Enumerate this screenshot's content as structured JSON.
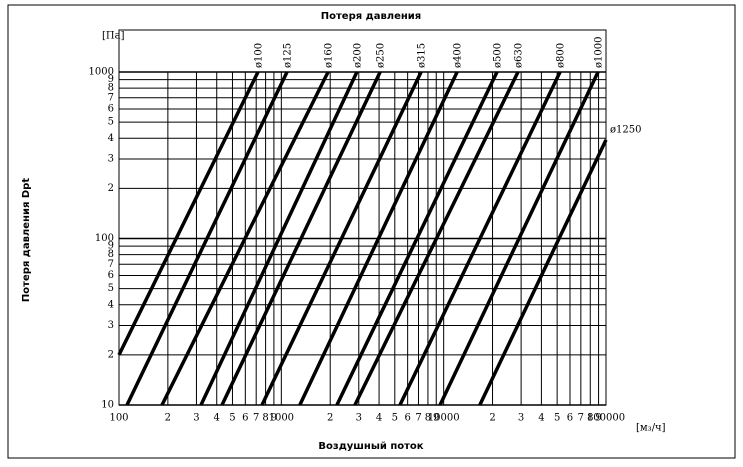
{
  "chart_data": {
    "type": "line",
    "title": "Потеря давления",
    "y_label": "Потеря давления Dpt",
    "x_label": "Воздушный поток",
    "y_unit": "[Па]",
    "x_unit": "[м₃/ч]",
    "xscale": "log",
    "yscale": "log",
    "grid": true,
    "color": "#000000",
    "xlim": [
      100,
      100000
    ],
    "ylim": [
      10,
      1000
    ],
    "xticks": [
      100,
      {
        "value": 200,
        "label": "2"
      },
      {
        "value": 300,
        "label": "3"
      },
      {
        "value": 400,
        "label": "4"
      },
      {
        "value": 500,
        "label": "5"
      },
      {
        "value": 600,
        "label": "6"
      },
      {
        "value": 700,
        "label": "7"
      },
      {
        "value": 800,
        "label": "8"
      },
      {
        "value": 900,
        "label": "9"
      },
      1000,
      {
        "value": 2000,
        "label": "2"
      },
      {
        "value": 3000,
        "label": "3"
      },
      {
        "value": 4000,
        "label": "4"
      },
      {
        "value": 5000,
        "label": "5"
      },
      {
        "value": 6000,
        "label": "6"
      },
      {
        "value": 7000,
        "label": "7"
      },
      {
        "value": 8000,
        "label": "8"
      },
      {
        "value": 9000,
        "label": "9"
      },
      10000,
      {
        "value": 20000,
        "label": "2"
      },
      {
        "value": 30000,
        "label": "3"
      },
      {
        "value": 40000,
        "label": "4"
      },
      {
        "value": 50000,
        "label": "5"
      },
      {
        "value": 60000,
        "label": "6"
      },
      {
        "value": 70000,
        "label": "7"
      },
      {
        "value": 80000,
        "label": "8"
      },
      {
        "value": 90000,
        "label": "9"
      },
      100000
    ],
    "yticks": [
      10,
      {
        "value": 20,
        "label": "2"
      },
      {
        "value": 30,
        "label": "3"
      },
      {
        "value": 40,
        "label": "4"
      },
      {
        "value": 50,
        "label": "5"
      },
      {
        "value": 60,
        "label": "6"
      },
      {
        "value": 70,
        "label": "7"
      },
      {
        "value": 80,
        "label": "8"
      },
      {
        "value": 90,
        "label": "9"
      },
      100,
      {
        "value": 200,
        "label": "2"
      },
      {
        "value": 300,
        "label": "3"
      },
      {
        "value": 400,
        "label": "4"
      },
      {
        "value": 500,
        "label": "5"
      },
      {
        "value": 600,
        "label": "6"
      },
      {
        "value": 700,
        "label": "7"
      },
      {
        "value": 800,
        "label": "8"
      },
      {
        "value": 900,
        "label": "9"
      },
      1000
    ],
    "series": [
      {
        "name": "ø100",
        "x": [
          100,
          718
        ],
        "values": [
          20,
          1000
        ]
      },
      {
        "name": "ø125",
        "x": [
          112,
          1084
        ],
        "values": [
          10,
          1000
        ]
      },
      {
        "name": "ø160",
        "x": [
          184,
          1940
        ],
        "values": [
          10,
          1000
        ]
      },
      {
        "name": "ø200",
        "x": [
          320,
          2920
        ],
        "values": [
          10,
          1000
        ]
      },
      {
        "name": "ø250",
        "x": [
          431,
          4060
        ],
        "values": [
          10,
          1000
        ]
      },
      {
        "name": "ø315",
        "x": [
          760,
          7260
        ],
        "values": [
          10,
          1000
        ]
      },
      {
        "name": "ø400",
        "x": [
          1300,
          12100
        ],
        "values": [
          10,
          1000
        ]
      },
      {
        "name": "ø500",
        "x": [
          2200,
          21300
        ],
        "values": [
          10,
          1000
        ]
      },
      {
        "name": "ø630",
        "x": [
          2840,
          28700
        ],
        "values": [
          10,
          1000
        ]
      },
      {
        "name": "ø800",
        "x": [
          5380,
          52100
        ],
        "values": [
          10,
          1000
        ]
      },
      {
        "name": "ø1000",
        "x": [
          9500,
          89300
        ],
        "values": [
          10,
          1000
        ]
      },
      {
        "name": "ø1250",
        "x": [
          16700,
          100000
        ],
        "values": [
          10,
          391
        ]
      }
    ]
  }
}
